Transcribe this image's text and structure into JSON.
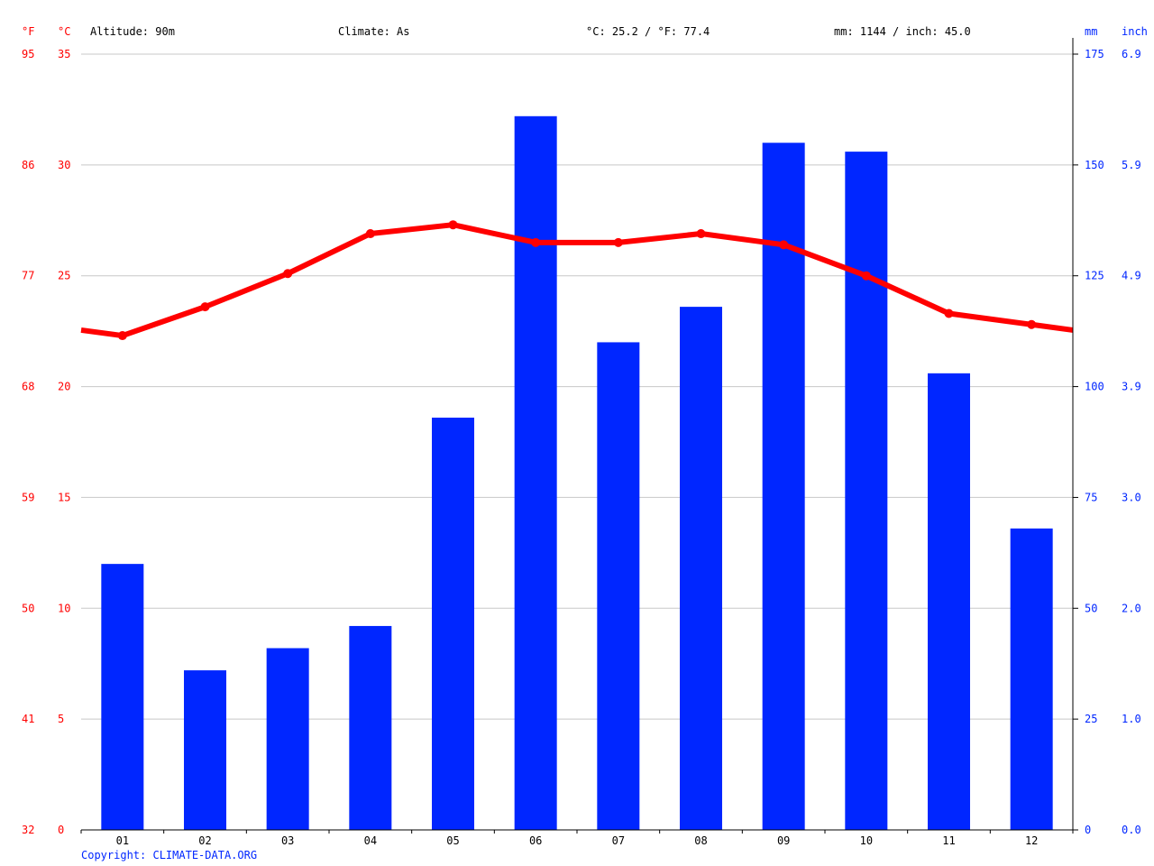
{
  "header": {
    "altitude": "Altitude: 90m",
    "climate": "Climate: As",
    "temp_avg": "°C: 25.2 / °F: 77.4",
    "precip_total": "mm: 1144 / inch: 45.0"
  },
  "copyright": "Copyright: CLIMATE-DATA.ORG",
  "colors": {
    "temperature": "#ff0000",
    "precipitation": "#0026ff",
    "grid": "#c8c8c8"
  },
  "chart_data": {
    "type": "bar",
    "categories": [
      "01",
      "02",
      "03",
      "04",
      "05",
      "06",
      "07",
      "08",
      "09",
      "10",
      "11",
      "12"
    ],
    "series": [
      {
        "type": "bar",
        "axis": "right",
        "values": [
          60,
          36,
          41,
          46,
          93,
          161,
          110,
          118,
          155,
          153,
          103,
          68
        ]
      },
      {
        "type": "line",
        "axis": "left",
        "values": [
          22.3,
          23.6,
          25.1,
          26.9,
          27.3,
          26.5,
          26.5,
          26.9,
          26.4,
          25.0,
          23.3,
          22.8
        ]
      }
    ],
    "left_axis": {
      "unit_f": "°F",
      "unit_c": "°C",
      "ticks_c": [
        "0",
        "5",
        "10",
        "15",
        "20",
        "25",
        "30",
        "35"
      ],
      "ticks_f": [
        "32",
        "41",
        "50",
        "59",
        "68",
        "77",
        "86",
        "95"
      ],
      "range_c": [
        0,
        35
      ]
    },
    "right_axis": {
      "unit_mm": "mm",
      "unit_inch": "inch",
      "ticks_mm": [
        "0",
        "25",
        "50",
        "75",
        "100",
        "125",
        "150",
        "175"
      ],
      "ticks_inch": [
        "0.0",
        "1.0",
        "2.0",
        "3.0",
        "3.9",
        "4.9",
        "5.9",
        "6.9"
      ],
      "range_mm": [
        0,
        175
      ]
    },
    "grid": true
  }
}
